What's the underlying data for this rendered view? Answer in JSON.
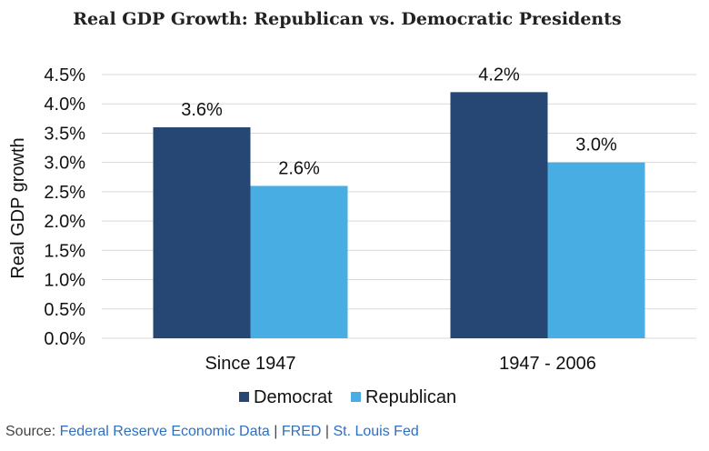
{
  "chart_data": {
    "type": "bar",
    "title": "Real GDP Growth: Republican vs. Democratic Presidents",
    "xlabel": "",
    "ylabel": "Real GDP growth",
    "categories": [
      "Since 1947",
      "1947 - 2006"
    ],
    "series": [
      {
        "name": "Democrat",
        "values": [
          3.6,
          4.2
        ],
        "labels": [
          "3.6%",
          "4.2%"
        ],
        "color": "#264773"
      },
      {
        "name": "Republican",
        "values": [
          2.6,
          3.0
        ],
        "labels": [
          "2.6%",
          "3.0%"
        ],
        "color": "#47ade3"
      }
    ],
    "ylim": [
      0,
      4.5
    ],
    "yticks": [
      "0.0%",
      "0.5%",
      "1.0%",
      "1.5%",
      "2.0%",
      "2.5%",
      "3.0%",
      "3.5%",
      "4.0%",
      "4.5%"
    ],
    "grid": true,
    "legend": "bottom"
  },
  "source": {
    "prefix": "Source: ",
    "parts": [
      "Federal Reserve Economic Data",
      "FRED",
      "St. Louis Fed"
    ],
    "sep": " | "
  }
}
